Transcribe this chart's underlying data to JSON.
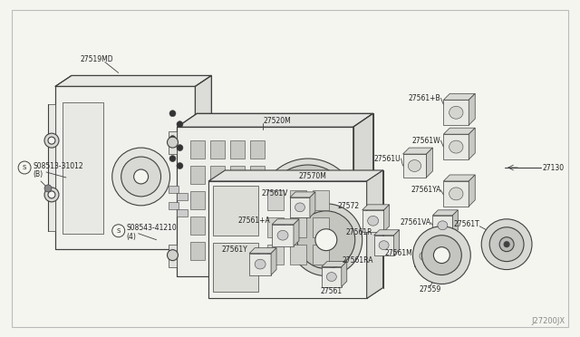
{
  "background_color": "#f5f5f0",
  "border_color": "#aaaaaa",
  "line_color": "#404040",
  "text_color": "#222222",
  "fig_width": 6.4,
  "fig_height": 3.72,
  "diagram_code": "J27200JX",
  "label_s1": "S08513-31012",
  "label_s1b": "(B)",
  "label_s2": "S08543-41210",
  "label_s2b": "(4)",
  "label_27519MD": "27519MD",
  "label_27520M": "27520M",
  "label_27570M": "27570M",
  "label_27561B": "27561+B",
  "label_27561W": "27561W",
  "label_27561U": "27561U",
  "label_27130": "27130",
  "label_27561YA": "27561YA",
  "label_27561VA": "27561VA",
  "label_27561M": "27561M",
  "label_27561T": "27561T",
  "label_27561V": "27561V",
  "label_27561A": "27561+A",
  "label_27561Y": "27561Y",
  "label_27561": "27561",
  "label_27561R": "27561R",
  "label_27561RA": "27561RA",
  "label_27572": "27572",
  "label_27559": "27559"
}
